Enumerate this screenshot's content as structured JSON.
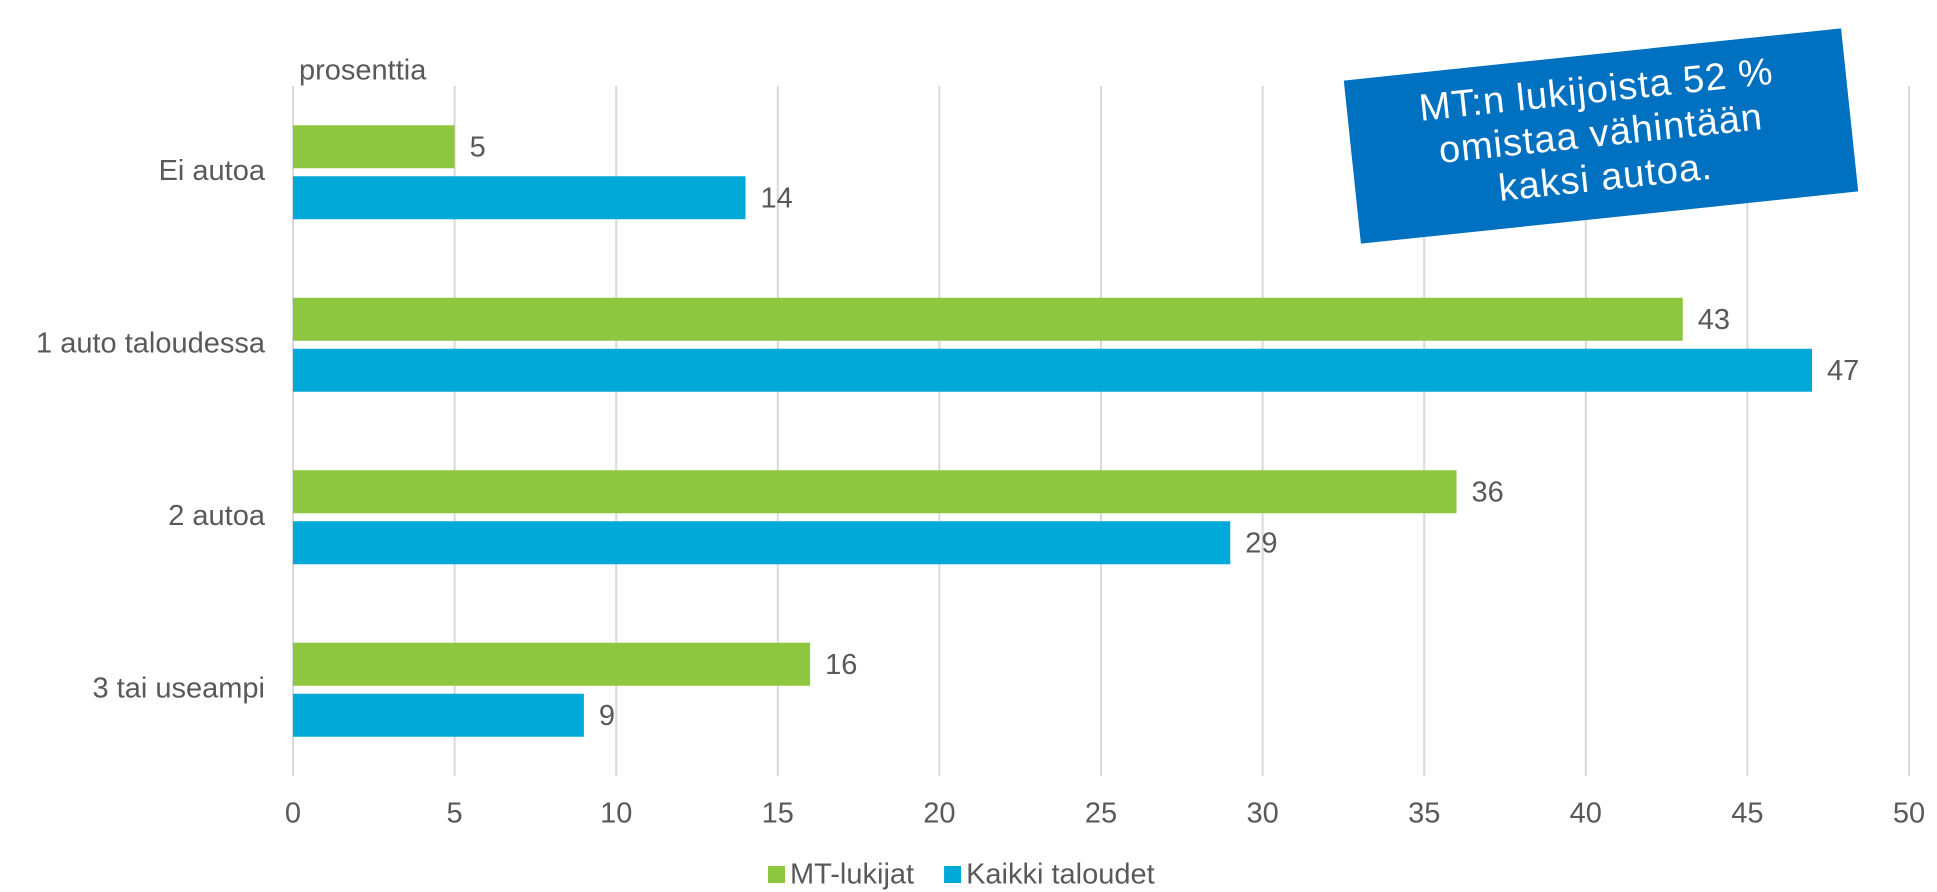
{
  "chart_data": {
    "type": "bar",
    "orientation": "horizontal",
    "axis_label": "prosenttia",
    "annotation": [
      "MT:n lukijoista 52 %",
      "omistaa vähintään",
      "kaksi autoa."
    ],
    "annotation_color": "#0070c0",
    "categories": [
      "Ei autoa",
      "1 auto taloudessa",
      "2 autoa",
      "3 tai useampi"
    ],
    "series": [
      {
        "name": "MT-lukijat",
        "color": "#8dc63f",
        "values": [
          5,
          43,
          36,
          16
        ]
      },
      {
        "name": "Kaikki taloudet",
        "color": "#00a9d8",
        "values": [
          14,
          47,
          29,
          9
        ]
      }
    ],
    "xlim": [
      0,
      50
    ],
    "xticks": [
      0,
      5,
      10,
      15,
      20,
      25,
      30,
      35,
      40,
      45,
      50
    ],
    "grid": true
  }
}
